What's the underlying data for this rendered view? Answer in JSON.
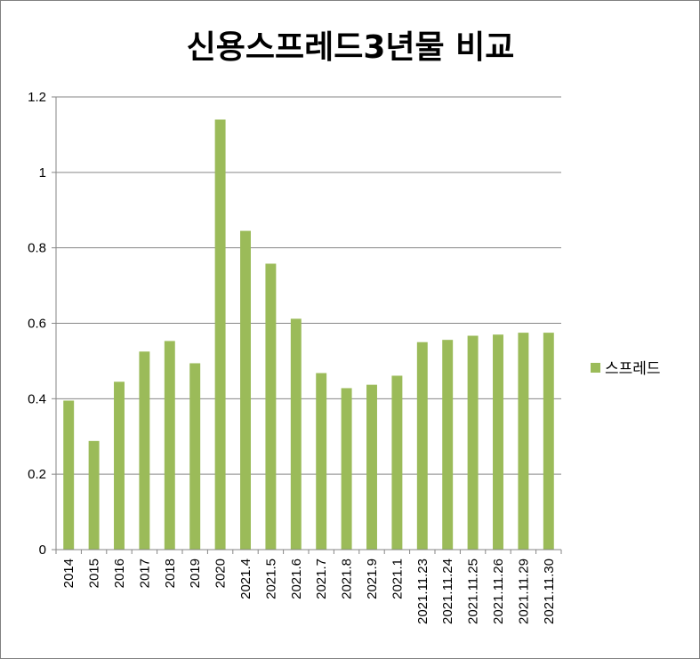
{
  "chart_data": {
    "type": "bar",
    "title": "신용스프레드3년물 비교",
    "xlabel": "",
    "ylabel": "",
    "categories": [
      "2014",
      "2015",
      "2016",
      "2017",
      "2018",
      "2019",
      "2020",
      "2021.4",
      "2021.5",
      "2021.6",
      "2021.7",
      "2021.8",
      "2021.9",
      "2021.1",
      "2021.11.23",
      "2021.11.24",
      "2021.11.25",
      "2021.11.26",
      "2021.11.29",
      "2021.11.30"
    ],
    "series": [
      {
        "name": "스프레드",
        "color": "#9bbb59",
        "values": [
          0.395,
          0.288,
          0.445,
          0.525,
          0.553,
          0.494,
          1.14,
          0.845,
          0.758,
          0.612,
          0.468,
          0.428,
          0.437,
          0.461,
          0.55,
          0.556,
          0.567,
          0.57,
          0.575,
          0.575
        ]
      }
    ],
    "ylim": [
      0,
      1.2
    ],
    "yticks": [
      0,
      0.2,
      0.4,
      0.6,
      0.8,
      1,
      1.2
    ],
    "ytick_labels": [
      "0",
      "0.2",
      "0.4",
      "0.6",
      "0.8",
      "1",
      "1.2"
    ],
    "grid": "horizontal",
    "gridline_color": "#868686",
    "legend_position": "right"
  }
}
